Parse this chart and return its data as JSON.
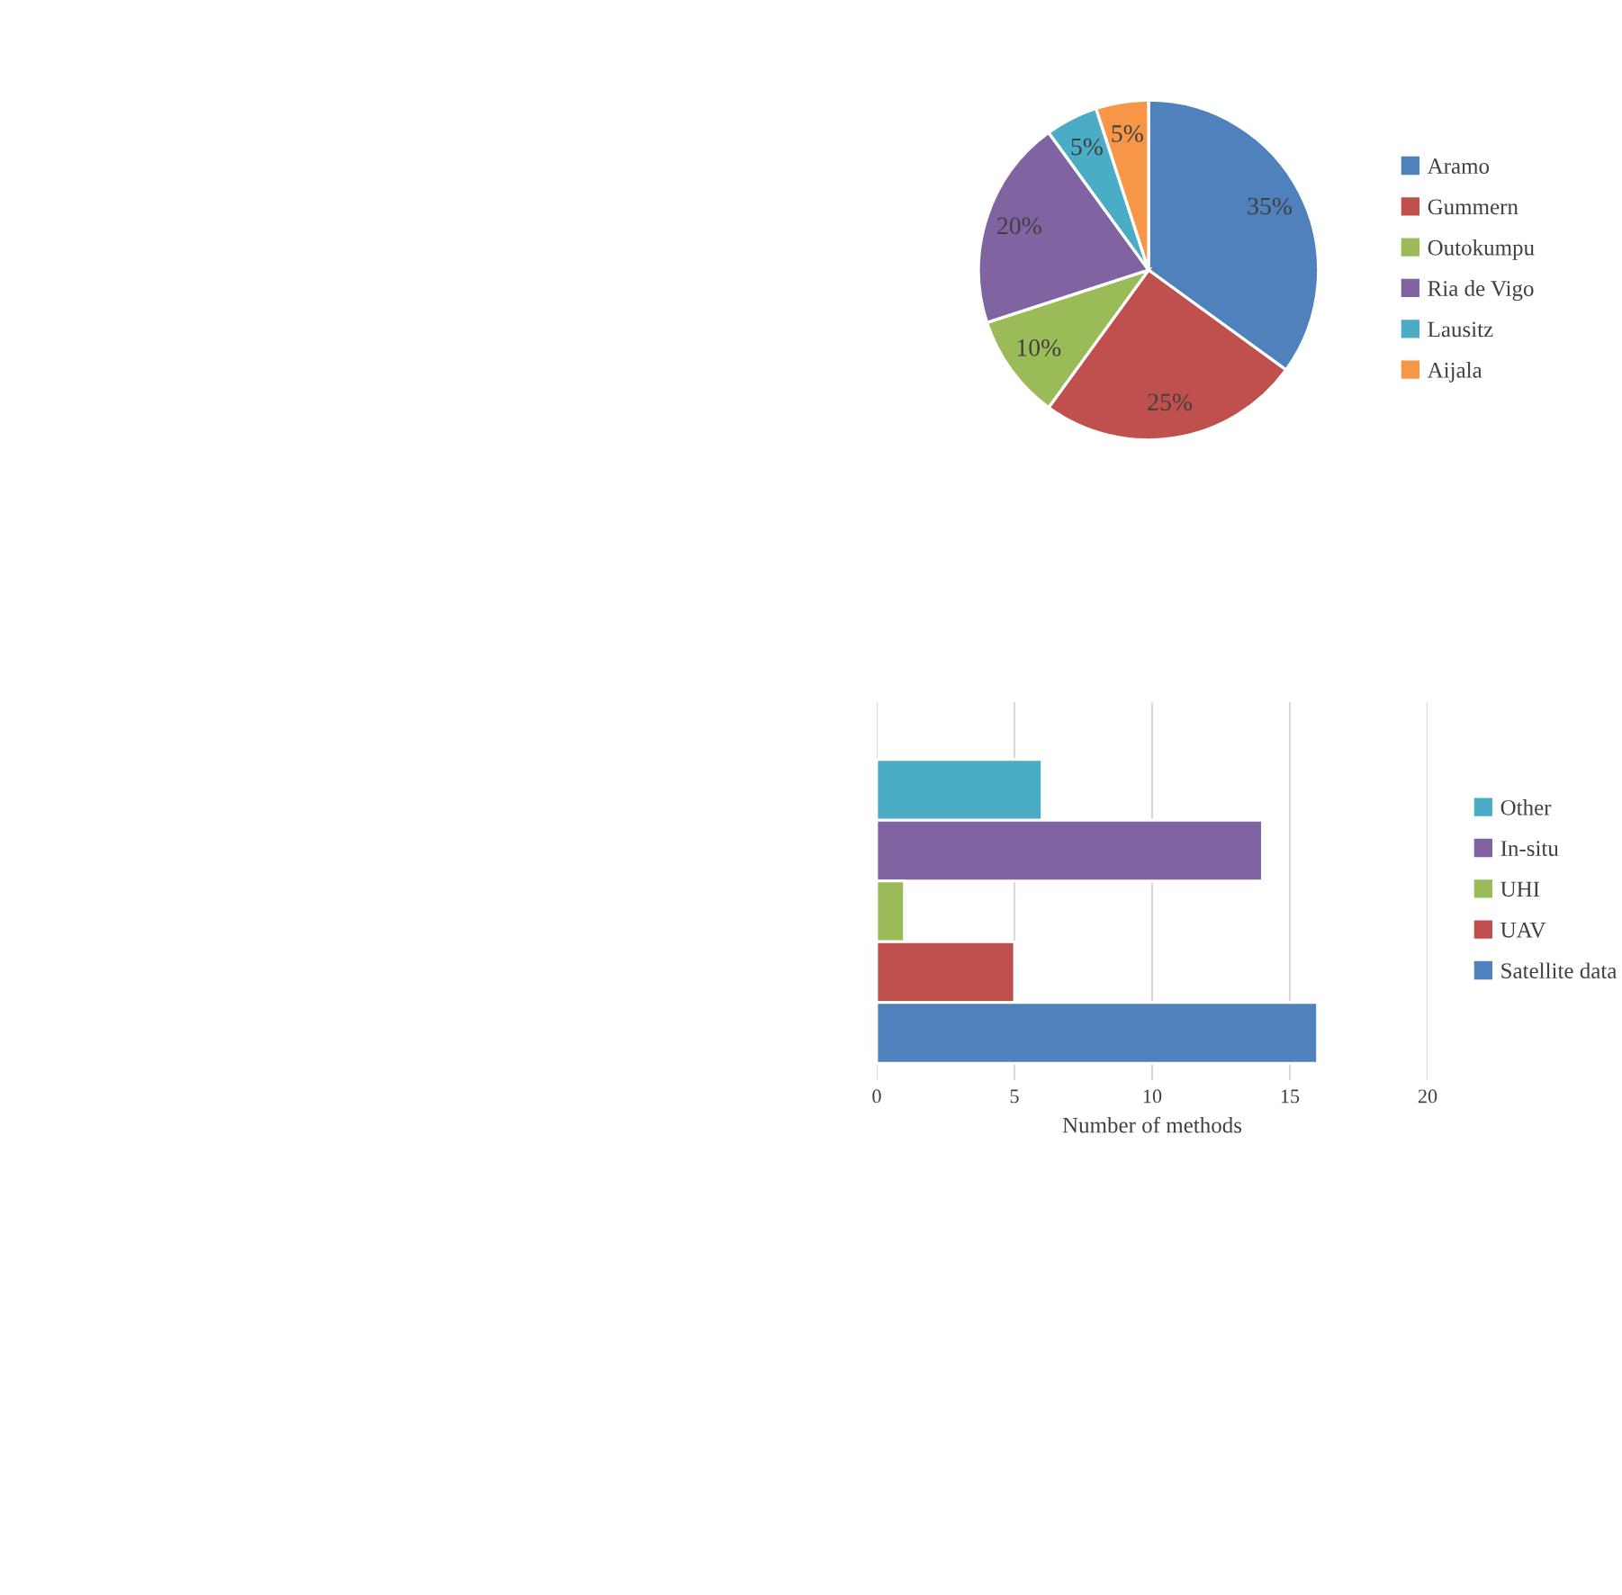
{
  "chart_data": [
    {
      "type": "pie",
      "categories": [
        "Aramo",
        "Gummern",
        "Outokumpu",
        "Ria de Vigo",
        "Lausitz",
        "Aijala"
      ],
      "values": [
        35,
        25,
        10,
        20,
        5,
        5
      ],
      "value_labels": [
        "35%",
        "25%",
        "10%",
        "20%",
        "5%",
        "5%"
      ],
      "colors": [
        "#4f81bd",
        "#c0504d",
        "#9bbb59",
        "#8064a2",
        "#4bacc6",
        "#f79646"
      ],
      "legend": "right"
    },
    {
      "type": "bar",
      "orientation": "horizontal",
      "categories": [
        null
      ],
      "xlabel": "Number of methods",
      "series": [
        {
          "name": "Other",
          "color": "#4bacc6",
          "values": [
            6
          ]
        },
        {
          "name": "In-situ",
          "color": "#8064a2",
          "values": [
            14
          ]
        },
        {
          "name": "UHI",
          "color": "#9bbb59",
          "values": [
            1
          ]
        },
        {
          "name": "UAV",
          "color": "#c0504d",
          "values": [
            5
          ]
        },
        {
          "name": "Satellite data",
          "color": "#4f81bd",
          "values": [
            16
          ]
        }
      ],
      "xlim": [
        0,
        20
      ],
      "xticks": [
        0,
        5,
        10,
        15,
        20
      ],
      "grid": "x",
      "legend": "right"
    }
  ]
}
